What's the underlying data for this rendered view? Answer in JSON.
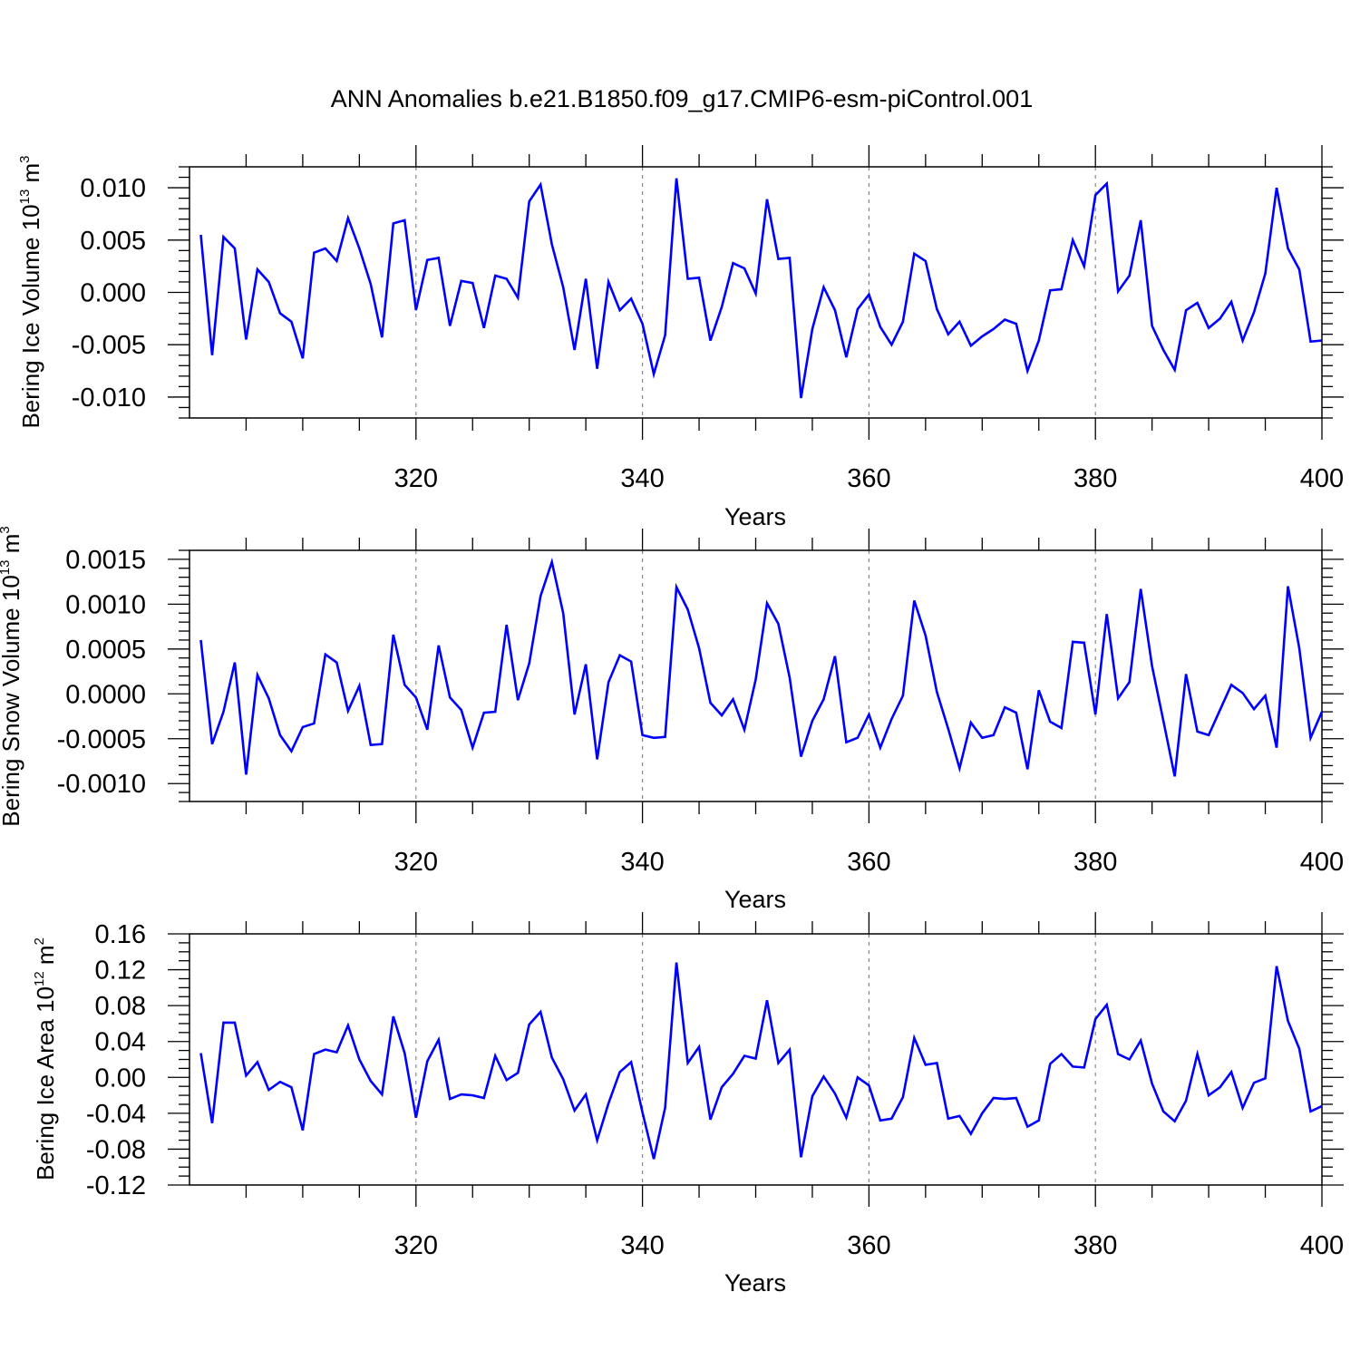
{
  "title": "ANN Anomalies b.e21.B1850.f09_g17.CMIP6-esm-piControl.001",
  "chart_data": [
    {
      "type": "line",
      "name": "ice-volume",
      "ylabel_prefix": "Bering Ice Volume 10",
      "ylabel_exponent": "13",
      "ylabel_unit": " m",
      "ylabel_unit_exponent": "3",
      "xlabel": "Years",
      "xlim": [
        300,
        400
      ],
      "ylim": [
        -0.012,
        0.012
      ],
      "x_ticks": [
        320,
        340,
        360,
        380,
        400
      ],
      "y_ticks": [
        -0.01,
        -0.005,
        0,
        0.005,
        0.01
      ],
      "y_tick_labels": [
        "-0.010",
        "-0.005",
        "0.000",
        "0.005",
        "0.010"
      ],
      "y_minor_step": 0.001,
      "line_color": "#0000ff",
      "grid": "vertical dashed at major x ticks",
      "x": [
        301,
        302,
        303,
        304,
        305,
        306,
        307,
        308,
        309,
        310,
        311,
        312,
        313,
        314,
        315,
        316,
        317,
        318,
        319,
        320,
        321,
        322,
        323,
        324,
        325,
        326,
        327,
        328,
        329,
        330,
        331,
        332,
        333,
        334,
        335,
        336,
        337,
        338,
        339,
        340,
        341,
        342,
        343,
        344,
        345,
        346,
        347,
        348,
        349,
        350,
        351,
        352,
        353,
        354,
        355,
        356,
        357,
        358,
        359,
        360,
        361,
        362,
        363,
        364,
        365,
        366,
        367,
        368,
        369,
        370,
        371,
        372,
        373,
        374,
        375,
        376,
        377,
        378,
        379,
        380,
        381,
        382,
        383,
        384,
        385,
        386,
        387,
        388,
        389,
        390,
        391,
        392,
        393,
        394,
        395,
        396,
        397,
        398,
        399,
        400
      ],
      "y": [
        0.0055,
        -0.006,
        0.0053,
        0.0042,
        -0.0045,
        0.0022,
        0.001,
        -0.002,
        -0.0028,
        -0.0063,
        0.0038,
        0.0042,
        0.003,
        0.0071,
        0.0042,
        0.0008,
        -0.0043,
        0.0066,
        0.0069,
        -0.0017,
        0.0031,
        0.0033,
        -0.0032,
        0.0011,
        0.0009,
        -0.0034,
        0.0016,
        0.0013,
        -0.0005,
        0.0087,
        0.0103,
        0.0046,
        0.0005,
        -0.0055,
        0.0013,
        -0.0073,
        0.001,
        -0.0017,
        -0.0006,
        -0.003,
        -0.0078,
        -0.0041,
        0.0109,
        0.0013,
        0.0014,
        -0.0046,
        -0.0014,
        0.0028,
        0.0023,
        -0.0001,
        0.0089,
        0.0032,
        0.0033,
        -0.0101,
        -0.0035,
        0.0005,
        -0.0017,
        -0.0062,
        -0.0016,
        -0.0002,
        -0.0033,
        -0.005,
        -0.0028,
        0.0037,
        0.003,
        -0.0016,
        -0.004,
        -0.0028,
        -0.0051,
        -0.0042,
        -0.0035,
        -0.0026,
        -0.003,
        -0.0075,
        -0.0046,
        0.0002,
        0.0003,
        0.005,
        0.0025,
        0.0093,
        0.0104,
        0.0001,
        0.0016,
        0.0069,
        -0.0032,
        -0.0055,
        -0.0074,
        -0.0017,
        -0.001,
        -0.0034,
        -0.0025,
        -0.0009,
        -0.0046,
        -0.0019,
        0.0018,
        0.01,
        0.0042,
        0.0022,
        -0.0047,
        -0.0046
      ]
    },
    {
      "type": "line",
      "name": "snow-volume",
      "ylabel_prefix": "Bering Snow Volume 10",
      "ylabel_exponent": "13",
      "ylabel_unit": " m",
      "ylabel_unit_exponent": "3",
      "xlabel": "Years",
      "xlim": [
        300,
        400
      ],
      "ylim": [
        -0.0012,
        0.0016
      ],
      "x_ticks": [
        320,
        340,
        360,
        380,
        400
      ],
      "y_ticks": [
        -0.001,
        -0.0005,
        0,
        0.0005,
        0.001,
        0.0015
      ],
      "y_tick_labels": [
        "-0.0010",
        "-0.0005",
        "0.0000",
        "0.0005",
        "0.0010",
        "0.0015"
      ],
      "y_minor_step": 0.0001,
      "line_color": "#0000ff",
      "grid": "vertical dashed at major x ticks",
      "x": [
        301,
        302,
        303,
        304,
        305,
        306,
        307,
        308,
        309,
        310,
        311,
        312,
        313,
        314,
        315,
        316,
        317,
        318,
        319,
        320,
        321,
        322,
        323,
        324,
        325,
        326,
        327,
        328,
        329,
        330,
        331,
        332,
        333,
        334,
        335,
        336,
        337,
        338,
        339,
        340,
        341,
        342,
        343,
        344,
        345,
        346,
        347,
        348,
        349,
        350,
        351,
        352,
        353,
        354,
        355,
        356,
        357,
        358,
        359,
        360,
        361,
        362,
        363,
        364,
        365,
        366,
        367,
        368,
        369,
        370,
        371,
        372,
        373,
        374,
        375,
        376,
        377,
        378,
        379,
        380,
        381,
        382,
        383,
        384,
        385,
        386,
        387,
        388,
        389,
        390,
        391,
        392,
        393,
        394,
        395,
        396,
        397,
        398,
        399,
        400
      ],
      "y": [
        0.0006,
        -0.00056,
        -0.0002,
        0.00035,
        -0.0009,
        0.00021,
        -5e-05,
        -0.00046,
        -0.00064,
        -0.00037,
        -0.00033,
        0.00044,
        0.00035,
        -0.00019,
        9e-05,
        -0.00057,
        -0.00056,
        0.00066,
        0.0001,
        -4e-05,
        -0.0004,
        0.00054,
        -4e-05,
        -0.00018,
        -0.0006,
        -0.00021,
        -0.0002,
        0.00077,
        -7e-05,
        0.00034,
        0.00109,
        0.00147,
        0.0009,
        -0.00023,
        0.00033,
        -0.00073,
        0.00013,
        0.00043,
        0.00036,
        -0.00046,
        -0.00049,
        -0.00048,
        0.00119,
        0.00094,
        0.00051,
        -0.0001,
        -0.00024,
        -6e-05,
        -0.0004,
        0.00016,
        0.00101,
        0.00078,
        0.00018,
        -0.0007,
        -0.0003,
        -6e-05,
        0.00042,
        -0.00054,
        -0.00049,
        -0.00023,
        -0.0006,
        -0.00028,
        -2e-05,
        0.00104,
        0.00065,
        2e-05,
        -0.00039,
        -0.00083,
        -0.00032,
        -0.00049,
        -0.00046,
        -0.00015,
        -0.00021,
        -0.00084,
        4e-05,
        -0.00031,
        -0.00038,
        0.00058,
        0.00057,
        -0.00023,
        0.00089,
        -5e-05,
        0.00013,
        0.00117,
        0.00031,
        -0.0003,
        -0.00092,
        0.00022,
        -0.00042,
        -0.00046,
        -0.00018,
        0.0001,
        1e-05,
        -0.00017,
        -2e-05,
        -0.0006,
        0.0012,
        0.00051,
        -0.00049,
        -0.0002
      ]
    },
    {
      "type": "line",
      "name": "ice-area",
      "ylabel_prefix": "Bering Ice Area 10",
      "ylabel_exponent": "12",
      "ylabel_unit": " m",
      "ylabel_unit_exponent": "2",
      "xlabel": "Years",
      "xlim": [
        300,
        400
      ],
      "ylim": [
        -0.12,
        0.16
      ],
      "x_ticks": [
        320,
        340,
        360,
        380,
        400
      ],
      "y_ticks": [
        -0.12,
        -0.08,
        -0.04,
        0,
        0.04,
        0.08,
        0.12,
        0.16
      ],
      "y_tick_labels": [
        "-0.12",
        "-0.08",
        "-0.04",
        "0.00",
        "0.04",
        "0.08",
        "0.12",
        "0.16"
      ],
      "y_minor_step": 0.01,
      "line_color": "#0000ff",
      "grid": "vertical dashed at major x ticks",
      "x": [
        301,
        302,
        303,
        304,
        305,
        306,
        307,
        308,
        309,
        310,
        311,
        312,
        313,
        314,
        315,
        316,
        317,
        318,
        319,
        320,
        321,
        322,
        323,
        324,
        325,
        326,
        327,
        328,
        329,
        330,
        331,
        332,
        333,
        334,
        335,
        336,
        337,
        338,
        339,
        340,
        341,
        342,
        343,
        344,
        345,
        346,
        347,
        348,
        349,
        350,
        351,
        352,
        353,
        354,
        355,
        356,
        357,
        358,
        359,
        360,
        361,
        362,
        363,
        364,
        365,
        366,
        367,
        368,
        369,
        370,
        371,
        372,
        373,
        374,
        375,
        376,
        377,
        378,
        379,
        380,
        381,
        382,
        383,
        384,
        385,
        386,
        387,
        388,
        389,
        390,
        391,
        392,
        393,
        394,
        395,
        396,
        397,
        398,
        399,
        400
      ],
      "y": [
        0.027,
        -0.051,
        0.061,
        0.061,
        0.002,
        0.017,
        -0.014,
        -0.005,
        -0.011,
        -0.059,
        0.026,
        0.031,
        0.028,
        0.058,
        0.02,
        -0.004,
        -0.019,
        0.068,
        0.027,
        -0.045,
        0.018,
        0.042,
        -0.024,
        -0.019,
        -0.02,
        -0.023,
        0.024,
        -0.003,
        0.005,
        0.059,
        0.073,
        0.022,
        -0.002,
        -0.037,
        -0.019,
        -0.07,
        -0.029,
        0.006,
        0.017,
        -0.039,
        -0.091,
        -0.034,
        0.128,
        0.016,
        0.034,
        -0.047,
        -0.011,
        0.004,
        0.024,
        0.021,
        0.086,
        0.016,
        0.031,
        -0.089,
        -0.021,
        0.001,
        -0.018,
        -0.045,
        0,
        -0.009,
        -0.048,
        -0.046,
        -0.022,
        0.044,
        0.014,
        0.016,
        -0.046,
        -0.043,
        -0.063,
        -0.04,
        -0.023,
        -0.024,
        -0.023,
        -0.055,
        -0.048,
        0.015,
        0.026,
        0.012,
        0.011,
        0.065,
        0.081,
        0.026,
        0.02,
        0.041,
        -0.007,
        -0.038,
        -0.049,
        -0.026,
        0.026,
        -0.02,
        -0.011,
        0.006,
        -0.034,
        -0.006,
        -0.001,
        0.124,
        0.063,
        0.032,
        -0.038,
        -0.032
      ]
    }
  ]
}
